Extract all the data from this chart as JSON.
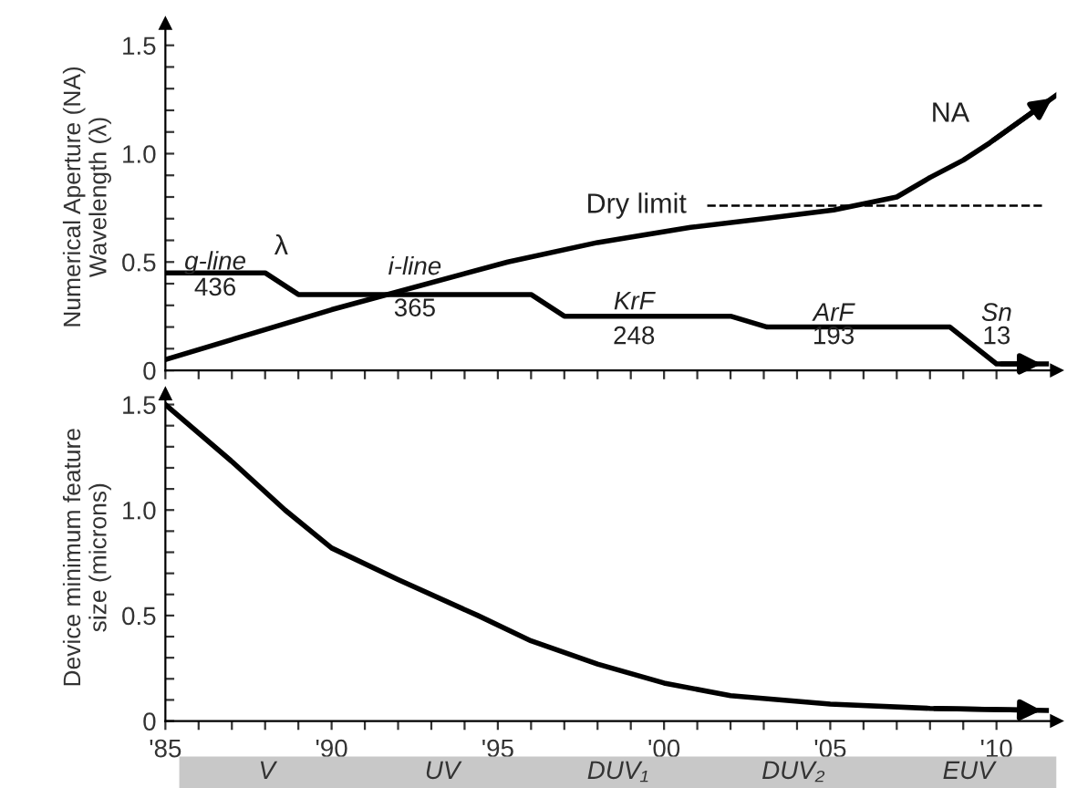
{
  "chart_data": [
    {
      "type": "line",
      "ylabel": "Numerical Aperture (NA)\nWavelength (λ)",
      "xlim": [
        1985,
        2011.8
      ],
      "ylim": [
        0,
        1.6
      ],
      "xticks": [
        1985,
        {
          "value": 1986,
          "label": null
        },
        {
          "value": 1987,
          "label": null
        },
        {
          "value": 1988,
          "label": null
        },
        {
          "value": 1989,
          "label": null
        },
        1990,
        {
          "value": 1991,
          "label": null
        },
        {
          "value": 1992,
          "label": null
        },
        {
          "value": 1993,
          "label": null
        },
        {
          "value": 1994,
          "label": null
        },
        1995,
        {
          "value": 1996,
          "label": null
        },
        {
          "value": 1997,
          "label": null
        },
        {
          "value": 1998,
          "label": null
        },
        {
          "value": 1999,
          "label": null
        },
        2000,
        {
          "value": 2001,
          "label": null
        },
        {
          "value": 2002,
          "label": null
        },
        {
          "value": 2003,
          "label": null
        },
        {
          "value": 2004,
          "label": null
        },
        2005,
        {
          "value": 2006,
          "label": null
        },
        {
          "value": 2007,
          "label": null
        },
        {
          "value": 2008,
          "label": null
        },
        {
          "value": 2009,
          "label": null
        },
        2010
      ],
      "yticks": [
        {
          "value": 0,
          "label": "0"
        },
        {
          "value": 0.1,
          "label": null
        },
        {
          "value": 0.2,
          "label": null
        },
        {
          "value": 0.3,
          "label": null
        },
        {
          "value": 0.4,
          "label": null
        },
        {
          "value": 0.5,
          "label": "0.5"
        },
        {
          "value": 0.6,
          "label": null
        },
        {
          "value": 0.7,
          "label": null
        },
        {
          "value": 0.8,
          "label": null
        },
        {
          "value": 0.9,
          "label": null
        },
        {
          "value": 1.0,
          "label": "1.0"
        },
        {
          "value": 1.1,
          "label": null
        },
        {
          "value": 1.2,
          "label": null
        },
        {
          "value": 1.3,
          "label": null
        },
        {
          "value": 1.4,
          "label": null
        },
        {
          "value": 1.5,
          "label": "1.5"
        }
      ],
      "tick_labels": "y",
      "series": [
        {
          "color": "#000000",
          "x": [
            1985,
            1988,
            1989,
            1996,
            1997,
            2002,
            2003.1,
            2008.6,
            2010,
            2011.5
          ],
          "values": [
            0.45,
            0.45,
            0.35,
            0.35,
            0.25,
            0.25,
            0.2,
            0.2,
            0.03,
            0.03
          ]
        },
        {
          "color": "#000000",
          "x": [
            1985,
            1990,
            1995.3,
            1998,
            2000.8,
            2003,
            2005.1,
            2007,
            2008,
            2009,
            2009.8,
            2011.8
          ],
          "values": [
            0.05,
            0.28,
            0.5,
            0.59,
            0.66,
            0.7,
            0.74,
            0.8,
            0.89,
            0.97,
            1.05,
            1.27
          ]
        },
        {
          "color": "#000000",
          "x": [
            2001.3,
            2011.4
          ],
          "values": [
            0.76,
            0.76
          ],
          "line_style": "dashed"
        }
      ],
      "annotations": [
        "g-line",
        "436",
        "i-line",
        "365",
        "KrF",
        "248",
        "ArF",
        "193",
        "Sn",
        "13",
        "λ",
        "Dry limit",
        {
          "text": "NA",
          "x": 2009.8,
          "y": 1.05
        }
      ]
    },
    {
      "type": "line",
      "ylabel": "Device minimum feature\nsize (microns)",
      "xlim": [
        1985,
        2011.8
      ],
      "ylim": [
        0,
        1.55
      ],
      "xticks": [
        {
          "value": 1985,
          "label": "'85"
        },
        {
          "value": 1986,
          "label": null
        },
        {
          "value": 1987,
          "label": null
        },
        {
          "value": 1988,
          "label": null
        },
        {
          "value": 1989,
          "label": null
        },
        {
          "value": 1990,
          "label": "'90"
        },
        {
          "value": 1991,
          "label": null
        },
        {
          "value": 1992,
          "label": null
        },
        {
          "value": 1993,
          "label": null
        },
        {
          "value": 1994,
          "label": null
        },
        {
          "value": 1995,
          "label": "'95"
        },
        {
          "value": 1996,
          "label": null
        },
        {
          "value": 1997,
          "label": null
        },
        {
          "value": 1998,
          "label": null
        },
        {
          "value": 1999,
          "label": null
        },
        {
          "value": 2000,
          "label": "'00"
        },
        {
          "value": 2001,
          "label": null
        },
        {
          "value": 2002,
          "label": null
        },
        {
          "value": 2003,
          "label": null
        },
        {
          "value": 2004,
          "label": null
        },
        {
          "value": 2005,
          "label": "'05"
        },
        {
          "value": 2006,
          "label": null
        },
        {
          "value": 2007,
          "label": null
        },
        {
          "value": 2008,
          "label": null
        },
        {
          "value": 2009,
          "label": null
        },
        {
          "value": 2010,
          "label": "'10"
        }
      ],
      "yticks": [
        {
          "value": 0,
          "label": "0"
        },
        {
          "value": 0.1,
          "label": null
        },
        {
          "value": 0.2,
          "label": null
        },
        {
          "value": 0.3,
          "label": null
        },
        {
          "value": 0.4,
          "label": null
        },
        {
          "value": 0.5,
          "label": "0.5"
        },
        {
          "value": 0.6,
          "label": null
        },
        {
          "value": 0.7,
          "label": null
        },
        {
          "value": 0.8,
          "label": null
        },
        {
          "value": 0.9,
          "label": null
        },
        {
          "value": 1.0,
          "label": "1.0"
        },
        {
          "value": 1.1,
          "label": null
        },
        {
          "value": 1.2,
          "label": null
        },
        {
          "value": 1.3,
          "label": null
        },
        {
          "value": 1.4,
          "label": null
        },
        {
          "value": 1.5,
          "label": "1.5"
        }
      ],
      "series": [
        {
          "color": "#000000",
          "x": [
            1985,
            1987,
            1988.6,
            1990,
            1992,
            1994.4,
            1996,
            1998,
            2000,
            2002,
            2005,
            2008,
            2011.5
          ],
          "values": [
            1.5,
            1.23,
            1.0,
            0.82,
            0.67,
            0.5,
            0.38,
            0.27,
            0.18,
            0.12,
            0.08,
            0.06,
            0.05
          ]
        }
      ],
      "annotations": [
        "V",
        "UV",
        "DUV₁",
        "DUV₂",
        "EUV"
      ]
    }
  ]
}
